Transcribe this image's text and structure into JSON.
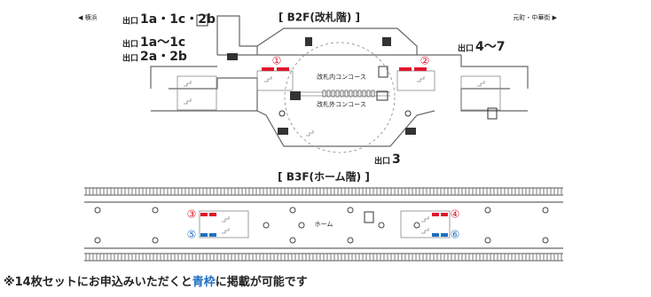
{
  "directions": {
    "left": "◀ 横浜",
    "right": "元町・中華街 ▶"
  },
  "b2f": {
    "title": "[ B2F(改札階) ]",
    "exits": [
      {
        "prefix": "出口",
        "name": "1a・1c・2b"
      },
      {
        "prefix": "出口",
        "name": "1a〜1c"
      },
      {
        "prefix": "出口",
        "name": "2a・2b"
      },
      {
        "prefix": "出口",
        "name": "4〜7"
      },
      {
        "prefix": "出口",
        "name": "3"
      }
    ],
    "concourse_inside": "改札内コンコース",
    "concourse_outside": "改札外コンコース",
    "spots": [
      "①",
      "②"
    ]
  },
  "b3f": {
    "title": "[ B3F(ホーム階) ]",
    "platform": "ホーム",
    "spots": [
      "③",
      "④",
      "⑤",
      "⑥"
    ]
  },
  "note": {
    "before": "※14枚セットにお申込みいただくと",
    "highlight": "青枠",
    "after": "に掲載が可能です"
  }
}
